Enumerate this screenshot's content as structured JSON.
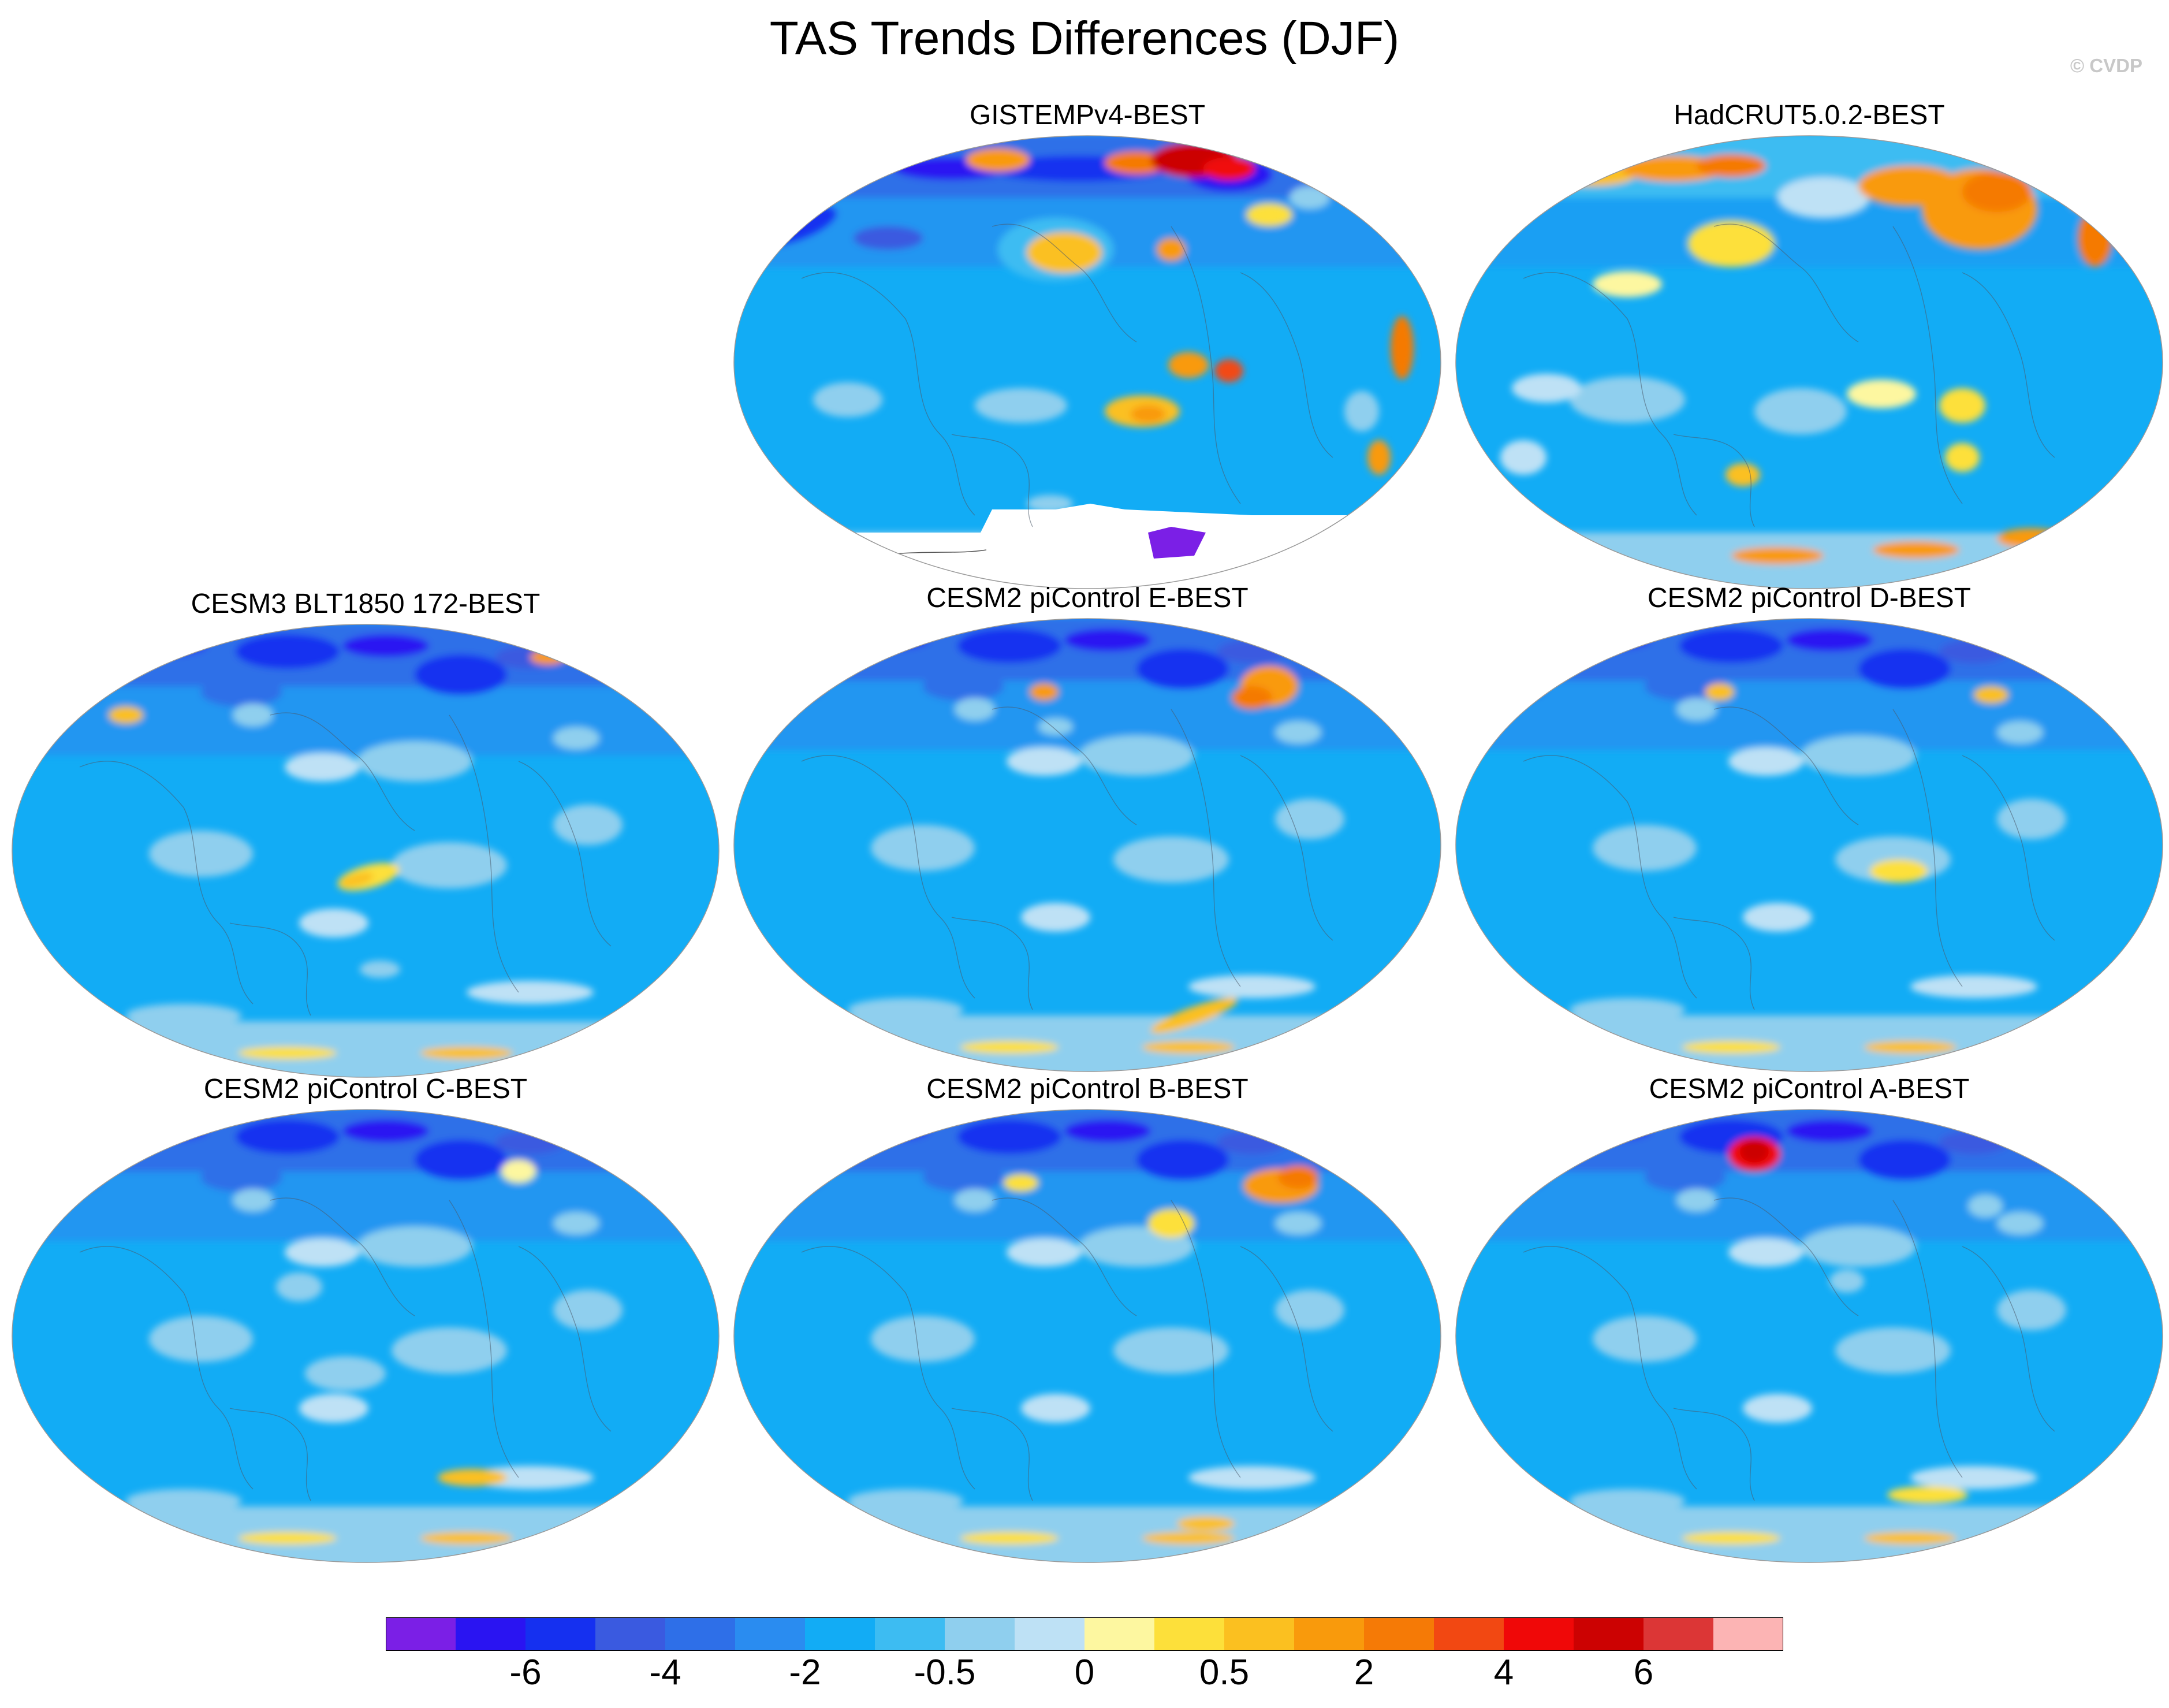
{
  "title": "TAS Trends Differences (DJF)",
  "credit": "© CVDP",
  "panels": [
    {
      "id": "gistemp",
      "title": "GISTEMPv4-BEST",
      "variant": "gistemp"
    },
    {
      "id": "hadcrut",
      "title": "HadCRUT5.0.2-BEST",
      "variant": "hadcrut"
    },
    {
      "id": "cesm3",
      "title": "CESM3 BLT1850 172-BEST",
      "variant": "model"
    },
    {
      "id": "cesm2e",
      "title": "CESM2 piControl E-BEST",
      "variant": "model"
    },
    {
      "id": "cesm2d",
      "title": "CESM2 piControl D-BEST",
      "variant": "model"
    },
    {
      "id": "cesm2c",
      "title": "CESM2 piControl C-BEST",
      "variant": "model"
    },
    {
      "id": "cesm2b",
      "title": "CESM2 piControl B-BEST",
      "variant": "model"
    },
    {
      "id": "cesm2a",
      "title": "CESM2 piControl A-BEST",
      "variant": "model"
    }
  ],
  "colorbar": {
    "colors": [
      "#7b1fe6",
      "#2a14f2",
      "#1530f0",
      "#3a5ae0",
      "#2e6fe8",
      "#2a8cf0",
      "#12acf5",
      "#3dbcf2",
      "#8fcfee",
      "#bee1f5",
      "#fdf7a0",
      "#fde03a",
      "#fbc020",
      "#f99a0c",
      "#f57a06",
      "#f24812",
      "#f00808",
      "#cc0202",
      "#dc3636",
      "#fcb4b4"
    ],
    "labels": [
      {
        "text": "-6",
        "boundary": 2
      },
      {
        "text": "-4",
        "boundary": 4
      },
      {
        "text": "-2",
        "boundary": 6
      },
      {
        "text": "-0.5",
        "boundary": 8
      },
      {
        "text": "0",
        "boundary": 10
      },
      {
        "text": "0.5",
        "boundary": 12
      },
      {
        "text": "2",
        "boundary": 14
      },
      {
        "text": "4",
        "boundary": 16
      },
      {
        "text": "6",
        "boundary": 18
      }
    ]
  }
}
